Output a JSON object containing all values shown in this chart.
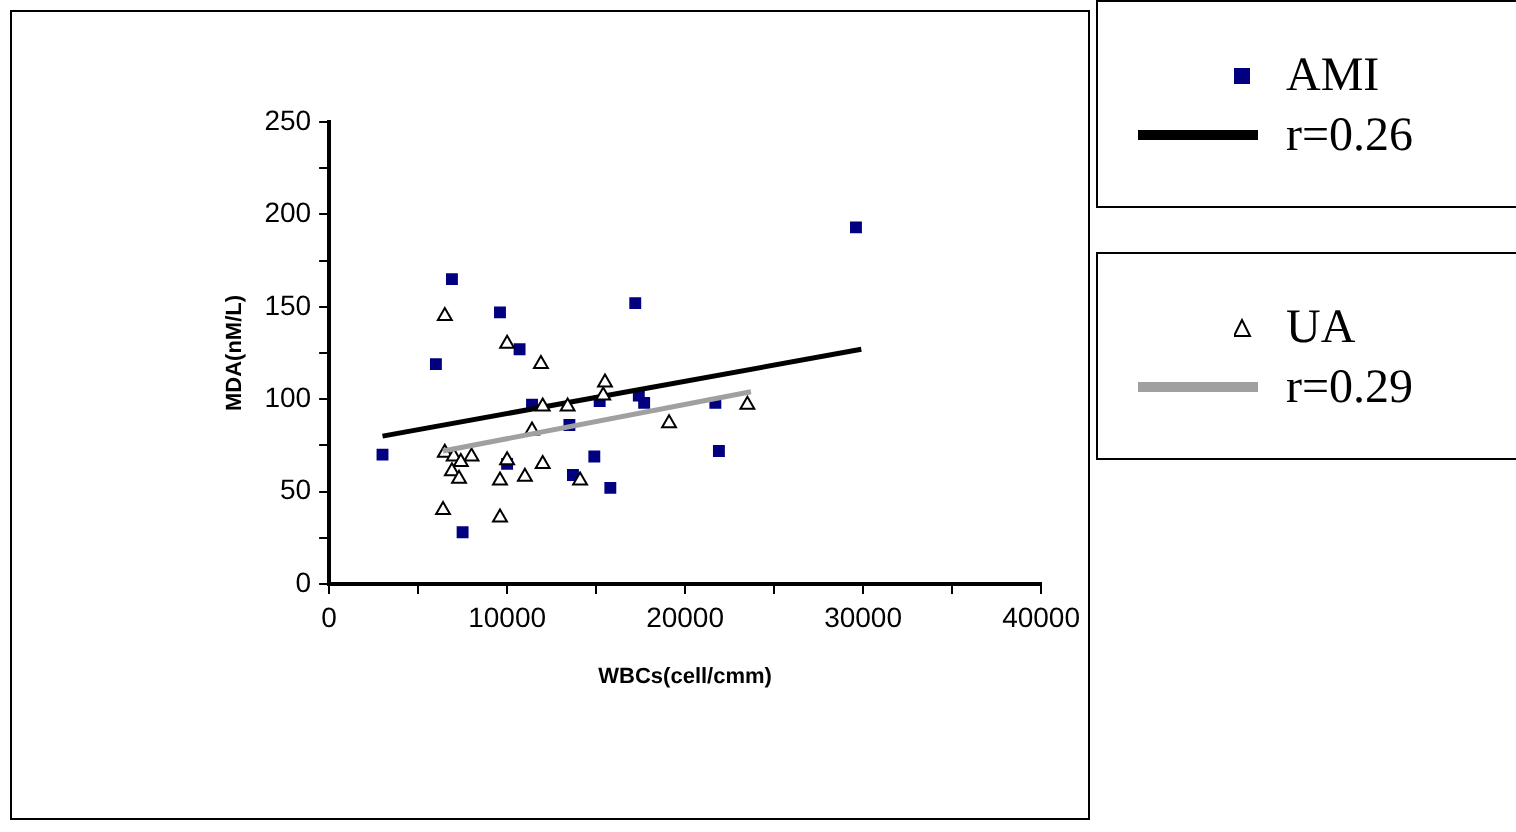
{
  "chart_data": {
    "type": "scatter",
    "xlabel": "WBCs(cell/cmm)",
    "ylabel": "MDA(nM/L)",
    "xlim": [
      0,
      40000
    ],
    "xticks": [
      0,
      {
        "value": 5000,
        "label": null
      },
      10000,
      {
        "value": 15000,
        "label": null
      },
      20000,
      {
        "value": 25000,
        "label": null
      },
      30000,
      {
        "value": 35000,
        "label": null
      },
      40000
    ],
    "ylim": [
      0,
      250
    ],
    "yticks": [
      0,
      {
        "value": 25,
        "label": null
      },
      50,
      {
        "value": 75,
        "label": null
      },
      100,
      {
        "value": 125,
        "label": null
      },
      150,
      {
        "value": 175,
        "label": null
      },
      200,
      {
        "value": 225,
        "label": null
      },
      250
    ],
    "grid": false,
    "legend": "right",
    "series": [
      {
        "name": "AMI",
        "type": "scatter",
        "marker": "square",
        "color": "#000080",
        "x": [
          6900,
          9600,
          10700,
          6000,
          17200,
          11400,
          13500,
          15200,
          17400,
          17700,
          21700,
          21900,
          3000,
          10000,
          14900,
          13700,
          15800,
          7500,
          29600
        ],
        "values": [
          165,
          147,
          127,
          119,
          152,
          97,
          86,
          99,
          102,
          98,
          98,
          72,
          70,
          65,
          69,
          59,
          52,
          28,
          193
        ]
      },
      {
        "name": "r=0.26",
        "type": "line",
        "marker": "none",
        "color": "#000000",
        "x": [
          3000,
          29900
        ],
        "values": [
          80,
          127
        ]
      },
      {
        "name": "UA",
        "type": "scatter",
        "marker": "triangle",
        "color": "#000000",
        "x": [
          6500,
          10000,
          11900,
          15500,
          15400,
          12000,
          13400,
          19100,
          23500,
          11400,
          6500,
          7000,
          8000,
          7400,
          6900,
          7300,
          10000,
          12000,
          9600,
          11000,
          14100,
          6400,
          9600
        ],
        "values": [
          145,
          130,
          119,
          109,
          102,
          96,
          96,
          87,
          97,
          83,
          71,
          69,
          69,
          66,
          61,
          57,
          67,
          65,
          56,
          58,
          56,
          40,
          36
        ]
      },
      {
        "name": "r=0.29",
        "type": "line",
        "marker": "none",
        "color": "#a0a0a0",
        "x": [
          6400,
          23700
        ],
        "values": [
          72,
          104
        ]
      }
    ]
  }
}
